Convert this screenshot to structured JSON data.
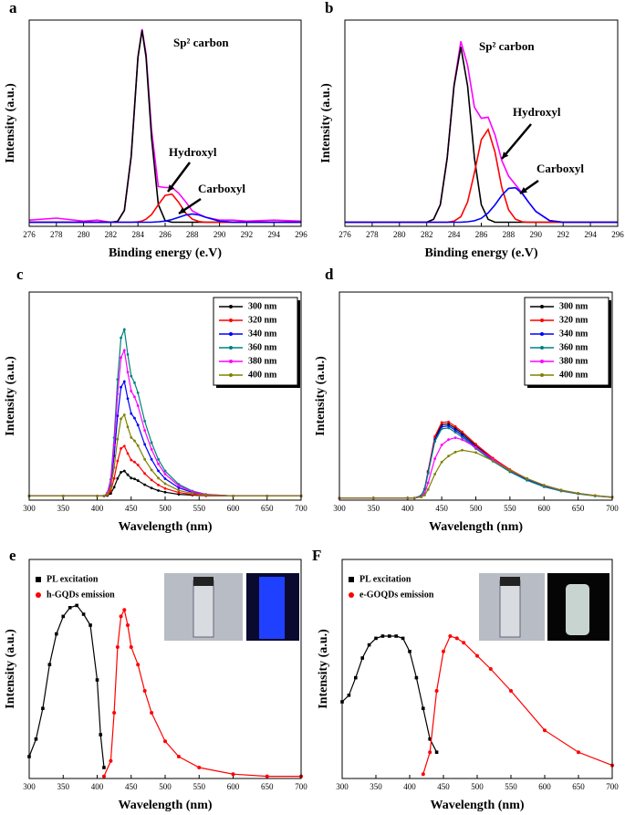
{
  "chart_data": [
    {
      "type": "line",
      "label": "a",
      "xlabel": "Binding energy (e.V)",
      "ylabel": "Intensity (a.u.)",
      "xlim": [
        276,
        296
      ],
      "xticks": [
        276,
        278,
        280,
        282,
        284,
        286,
        288,
        290,
        292,
        294,
        296
      ],
      "ylim": [
        0,
        100
      ],
      "x": [
        276,
        278,
        280,
        281,
        282,
        282.5,
        283,
        283.5,
        284,
        284.3,
        284.6,
        285,
        285.5,
        286,
        286.5,
        287,
        287.5,
        288,
        288.5,
        289,
        290,
        291,
        292,
        294,
        296
      ],
      "series": [
        {
          "color": "#ff00ff",
          "values": [
            3,
            4,
            2.5,
            3,
            2,
            2.4,
            7.7,
            34,
            82.2,
            95.6,
            83.5,
            46.7,
            19.3,
            18.8,
            18.9,
            16,
            12,
            7.5,
            5.8,
            4.4,
            3,
            3,
            2.5,
            3,
            2.5
          ]
        },
        {
          "color": "#000000",
          "values": [
            2,
            2,
            2,
            2,
            2,
            2.4,
            7.7,
            34,
            82,
            95,
            82,
            43,
            10.6,
            2.8,
            2,
            2,
            2,
            2,
            2,
            2,
            2,
            2,
            2,
            2,
            2
          ]
        },
        {
          "color": "#ff0000",
          "values": [
            2,
            2,
            2,
            2,
            2,
            2,
            2,
            2,
            2.2,
            2.6,
            3.5,
            5.7,
            10.5,
            15,
            15.6,
            11.6,
            6.5,
            3.5,
            2.3,
            2,
            2,
            2,
            2,
            2,
            2
          ]
        },
        {
          "color": "#0000ff",
          "values": [
            2,
            2,
            2,
            2,
            2,
            2,
            2,
            2,
            2,
            2,
            2,
            2,
            2.2,
            2.5,
            3.3,
            4.4,
            5.5,
            6,
            5.5,
            4.4,
            2.5,
            2,
            2,
            2,
            2
          ]
        }
      ],
      "annotations": [
        "Sp² carbon",
        "Hydroxyl",
        "Carboxyl"
      ]
    },
    {
      "type": "line",
      "label": "b",
      "xlabel": "Binding energy (e.V)",
      "ylabel": "Intensity (a.u.)",
      "xlim": [
        276,
        296
      ],
      "xticks": [
        276,
        278,
        280,
        282,
        284,
        286,
        288,
        290,
        292,
        294,
        296
      ],
      "ylim": [
        0,
        100
      ],
      "x": [
        276,
        278,
        280,
        281,
        282,
        282.5,
        283,
        283.5,
        284,
        284.5,
        285,
        285.5,
        286,
        286.5,
        287,
        287.5,
        288,
        288.5,
        289,
        289.5,
        290,
        291,
        292,
        294,
        296
      ],
      "series": [
        {
          "color": "#ff00ff",
          "values": [
            2,
            2,
            2,
            2,
            2,
            3.4,
            10.5,
            33,
            68.5,
            89.7,
            78,
            57.7,
            52.4,
            52.9,
            44.4,
            32,
            24.4,
            20.2,
            16.1,
            11.4,
            7.2,
            2.8,
            2,
            2,
            2
          ]
        },
        {
          "color": "#000000",
          "values": [
            2,
            2,
            2,
            2,
            2,
            3.4,
            10.5,
            33,
            68,
            87,
            68,
            33,
            10.5,
            3.4,
            2,
            2,
            2,
            2,
            2,
            2,
            2,
            2,
            2,
            2,
            2
          ]
        },
        {
          "color": "#ff0000",
          "values": [
            2,
            2,
            2,
            2,
            2,
            2,
            2,
            2,
            2.5,
            4.7,
            11.8,
            26,
            42,
            47,
            36,
            19,
            8,
            3.5,
            2.2,
            2,
            2,
            2,
            2,
            2,
            2
          ]
        },
        {
          "color": "#0000ff",
          "values": [
            2,
            2,
            2,
            2,
            2,
            2,
            2,
            2,
            2,
            2,
            2.2,
            2.7,
            3.9,
            6.5,
            10.4,
            15,
            18.4,
            18.7,
            15.9,
            11.4,
            7.2,
            2.8,
            2,
            2,
            2
          ]
        }
      ],
      "annotations": [
        "Sp² carbon",
        "Hydroxyl",
        "Carboxyl"
      ]
    },
    {
      "type": "line",
      "label": "c",
      "xlabel": "Wavelength (nm)",
      "ylabel": "Intensity (a.u.)",
      "xlim": [
        300,
        700
      ],
      "xticks": [
        300,
        350,
        400,
        450,
        500,
        550,
        600,
        650,
        700
      ],
      "ylim": [
        0,
        100
      ],
      "legend": "upper right",
      "markers": true,
      "x": [
        300,
        350,
        400,
        410,
        415,
        420,
        425,
        430,
        435,
        440,
        445,
        450,
        455,
        460,
        470,
        480,
        490,
        500,
        520,
        540,
        560,
        600,
        650,
        700
      ],
      "series": [
        {
          "name": "300 nm",
          "color": "#000000",
          "values": [
            2,
            2,
            2,
            2,
            2.2,
            3.2,
            6.2,
            10.4,
            13.4,
            14,
            12.2,
            10.6,
            10.2,
            9.4,
            7.4,
            5.8,
            4.6,
            3.8,
            2.8,
            2.4,
            2.1,
            2,
            2,
            2
          ]
        },
        {
          "name": "320 nm",
          "color": "#ff0000",
          "values": [
            2,
            2,
            2,
            2,
            2.5,
            4.4,
            10.4,
            18.8,
            24.8,
            26,
            22.4,
            19.3,
            18.3,
            16.9,
            12.8,
            9.7,
            7.3,
            5.6,
            3.7,
            2.7,
            2.2,
            2,
            2,
            2
          ]
        },
        {
          "name": "340 nm",
          "color": "#0000ff",
          "values": [
            2,
            2,
            2,
            2,
            3.1,
            7.5,
            21.3,
            40.5,
            54.3,
            57,
            48.8,
            41.6,
            39.4,
            36.1,
            26.8,
            19.6,
            14.1,
            10.3,
            5.9,
            3.7,
            2.6,
            2,
            2,
            2
          ]
        },
        {
          "name": "360 nm",
          "color": "#008080",
          "values": [
            2,
            2,
            2,
            2,
            3.6,
            10,
            30,
            58,
            78,
            82,
            70,
            59.6,
            56.4,
            51.6,
            38,
            27.6,
            19.6,
            14,
            7.6,
            4.4,
            2.8,
            2,
            2,
            2
          ]
        },
        {
          "name": "380 nm",
          "color": "#ff00ff",
          "values": [
            2,
            2,
            2,
            2,
            3.4,
            9,
            26.5,
            51,
            68.5,
            72,
            61.5,
            52.4,
            49.6,
            45.4,
            33.5,
            24.4,
            17.4,
            12.5,
            6.9,
            4.1,
            2.7,
            2,
            2,
            2
          ]
        },
        {
          "name": "400 nm",
          "color": "#808000",
          "values": [
            2,
            2,
            2,
            2,
            2.8,
            5.9,
            15.7,
            29.3,
            39.1,
            41,
            35.2,
            30.1,
            28.5,
            26.2,
            19.6,
            14.5,
            10.6,
            7.9,
            4.7,
            3.2,
            2.4,
            2,
            2,
            2
          ]
        }
      ]
    },
    {
      "type": "line",
      "label": "d",
      "xlabel": "Wavelength (nm)",
      "ylabel": "Intensity (a.u.)",
      "xlim": [
        300,
        700
      ],
      "xticks": [
        300,
        350,
        400,
        450,
        500,
        550,
        600,
        650,
        700
      ],
      "ylim": [
        0,
        100
      ],
      "legend": "upper right",
      "markers": true,
      "x": [
        300,
        350,
        400,
        410,
        420,
        425,
        430,
        440,
        450,
        460,
        470,
        480,
        500,
        525,
        550,
        575,
        600,
        625,
        650,
        675,
        700
      ],
      "series": [
        {
          "name": "300 nm",
          "color": "#000000",
          "values": [
            1,
            1,
            1,
            1,
            2.1,
            5.3,
            13.6,
            29.8,
            36.3,
            36.6,
            34.5,
            32,
            26.2,
            19.7,
            14.3,
            10,
            6.8,
            4.6,
            3.2,
            2.1,
            1.4
          ]
        },
        {
          "name": "320 nm",
          "color": "#ff0000",
          "values": [
            1,
            1,
            1,
            1,
            2.1,
            5.4,
            14,
            30.6,
            37.3,
            37.6,
            35.4,
            32.8,
            26.9,
            20.2,
            14.7,
            10.3,
            6.9,
            4.7,
            3.2,
            2.1,
            1.4
          ]
        },
        {
          "name": "340 nm",
          "color": "#0000ff",
          "values": [
            1,
            1,
            1,
            1,
            2.1,
            5.2,
            13.3,
            29,
            35.3,
            35.7,
            33.6,
            31.1,
            25.5,
            19.2,
            14,
            9.8,
            6.6,
            4.5,
            3.1,
            2.1,
            1.4
          ]
        },
        {
          "name": "360 nm",
          "color": "#008080",
          "values": [
            1,
            1,
            1,
            1,
            2,
            5.1,
            12.9,
            28.2,
            34.3,
            34.7,
            32.6,
            30.2,
            24.8,
            18.7,
            13.6,
            9.5,
            6.4,
            4.4,
            3,
            2,
            1.3
          ]
        },
        {
          "name": "380 nm",
          "color": "#ff00ff",
          "values": [
            1,
            1,
            1,
            1,
            1.6,
            3.3,
            8.3,
            19.9,
            26.5,
            29.1,
            30,
            29.1,
            25.4,
            19.6,
            14.3,
            10.3,
            7.1,
            4.8,
            3.3,
            2.2,
            1.4
          ]
        },
        {
          "name": "400 nm",
          "color": "#808000",
          "values": [
            1,
            1,
            1,
            1,
            1.5,
            2.4,
            5.1,
            12.5,
            18.3,
            21.2,
            23.1,
            24,
            22.9,
            18.9,
            14.3,
            10.4,
            7.2,
            4.9,
            3.3,
            2.2,
            1.5
          ]
        }
      ]
    },
    {
      "type": "line",
      "label": "e",
      "xlabel": "Wavelength (nm)",
      "ylabel": "Intensity (a.u.)",
      "xlim": [
        300,
        700
      ],
      "xticks": [
        300,
        350,
        400,
        450,
        500,
        550,
        600,
        650,
        700
      ],
      "ylim": [
        0,
        100
      ],
      "legend": "upper left",
      "series": [
        {
          "name": "PL excitation",
          "color": "#000000",
          "marker": "square",
          "x": [
            300,
            310,
            320,
            330,
            340,
            350,
            360,
            370,
            380,
            390,
            400,
            405,
            410
          ],
          "values": [
            10,
            18,
            32,
            52,
            66,
            74,
            78,
            79,
            75,
            70,
            45,
            20,
            5
          ]
        },
        {
          "name": "h-GQDs emission",
          "color": "#ff0000",
          "marker": "circle",
          "x": [
            410,
            420,
            425,
            430,
            435,
            440,
            445,
            450,
            460,
            470,
            480,
            500,
            520,
            550,
            600,
            650,
            700
          ],
          "values": [
            1,
            8,
            30,
            60,
            74,
            77,
            70,
            60,
            52,
            40,
            30,
            17,
            10,
            5,
            2,
            1,
            1
          ]
        }
      ]
    },
    {
      "type": "line",
      "label": "F",
      "xlabel": "Wavelength (nm)",
      "ylabel": "Intensity (a.u.)",
      "xlim": [
        300,
        700
      ],
      "xticks": [
        300,
        350,
        400,
        450,
        500,
        550,
        600,
        650,
        700
      ],
      "ylim": [
        0,
        100
      ],
      "legend": "upper left",
      "series": [
        {
          "name": "PL excitation",
          "color": "#000000",
          "marker": "square",
          "x": [
            300,
            310,
            320,
            330,
            340,
            350,
            360,
            370,
            380,
            390,
            400,
            410,
            420,
            430,
            440
          ],
          "values": [
            35,
            38,
            46,
            55,
            61,
            64,
            65,
            65,
            65,
            64,
            58,
            46,
            32,
            18,
            12
          ]
        },
        {
          "name": "e-GOQDs emission",
          "color": "#ff0000",
          "marker": "circle",
          "x": [
            420,
            430,
            440,
            450,
            460,
            470,
            480,
            500,
            520,
            550,
            600,
            650,
            700
          ],
          "values": [
            2,
            12,
            40,
            58,
            65,
            64,
            62,
            56,
            50,
            40,
            22,
            12,
            6
          ]
        }
      ]
    }
  ]
}
